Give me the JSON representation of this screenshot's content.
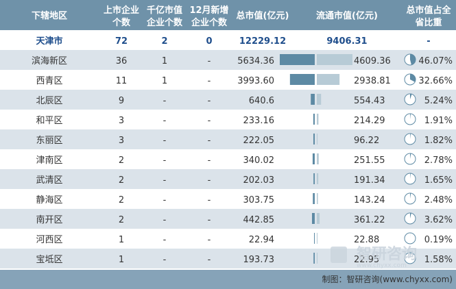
{
  "colors": {
    "header_bg": "#6f92a9",
    "band": "#dbe3ea",
    "footer_bg": "#86a3b8",
    "total_bar": "#5d8aa4",
    "circ_bar": "#b7cbd6",
    "pie_fill": "#5d8aa4",
    "pie_stroke": "#5d8aa4"
  },
  "table": {
    "headers": [
      [
        "下辖地区"
      ],
      [
        "上市企业",
        "个数"
      ],
      [
        "千亿市值",
        "企业个数"
      ],
      [
        "12月新增",
        "企业个数"
      ],
      [
        "总市值(亿元)"
      ],
      [
        "流通市值(亿元)"
      ],
      [
        "总市值占全",
        "省比重"
      ]
    ],
    "total_row": {
      "region": "天津市",
      "count": "72",
      "trillion": "2",
      "new": "0",
      "total": "12229.12",
      "circ": "9406.31",
      "share": "-"
    }
  },
  "chart_data": {
    "type": "table",
    "columns": [
      "下辖地区",
      "上市企业个数",
      "千亿市值企业个数",
      "12月新增企业个数",
      "总市值(亿元)",
      "流通市值(亿元)",
      "总市值占全省比重"
    ],
    "rows": [
      {
        "region": "滨海新区",
        "count": "36",
        "trillion": "1",
        "new": "-",
        "total": "5634.36",
        "circ": "4609.36",
        "share": "46.07%",
        "total_v": 5634.36,
        "circ_v": 4609.36,
        "share_v": 46.07
      },
      {
        "region": "西青区",
        "count": "11",
        "trillion": "1",
        "new": "-",
        "total": "3993.60",
        "circ": "2938.81",
        "share": "32.66%",
        "total_v": 3993.6,
        "circ_v": 2938.81,
        "share_v": 32.66
      },
      {
        "region": "北辰区",
        "count": "9",
        "trillion": "-",
        "new": "-",
        "total": "640.6",
        "circ": "554.43",
        "share": "5.24%",
        "total_v": 640.6,
        "circ_v": 554.43,
        "share_v": 5.24
      },
      {
        "region": "和平区",
        "count": "3",
        "trillion": "-",
        "new": "-",
        "total": "233.16",
        "circ": "214.29",
        "share": "1.91%",
        "total_v": 233.16,
        "circ_v": 214.29,
        "share_v": 1.91
      },
      {
        "region": "东丽区",
        "count": "3",
        "trillion": "-",
        "new": "-",
        "total": "222.05",
        "circ": "96.22",
        "share": "1.82%",
        "total_v": 222.05,
        "circ_v": 96.22,
        "share_v": 1.82
      },
      {
        "region": "津南区",
        "count": "2",
        "trillion": "-",
        "new": "-",
        "total": "340.02",
        "circ": "251.55",
        "share": "2.78%",
        "total_v": 340.02,
        "circ_v": 251.55,
        "share_v": 2.78
      },
      {
        "region": "武清区",
        "count": "2",
        "trillion": "-",
        "new": "-",
        "total": "202.03",
        "circ": "191.34",
        "share": "1.65%",
        "total_v": 202.03,
        "circ_v": 191.34,
        "share_v": 1.65
      },
      {
        "region": "静海区",
        "count": "2",
        "trillion": "-",
        "new": "-",
        "total": "303.75",
        "circ": "143.24",
        "share": "2.48%",
        "total_v": 303.75,
        "circ_v": 143.24,
        "share_v": 2.48
      },
      {
        "region": "南开区",
        "count": "2",
        "trillion": "-",
        "new": "-",
        "total": "442.85",
        "circ": "361.22",
        "share": "3.62%",
        "total_v": 442.85,
        "circ_v": 361.22,
        "share_v": 3.62
      },
      {
        "region": "河西区",
        "count": "1",
        "trillion": "-",
        "new": "-",
        "total": "22.94",
        "circ": "22.88",
        "share": "0.19%",
        "total_v": 22.94,
        "circ_v": 22.88,
        "share_v": 0.19
      },
      {
        "region": "宝坻区",
        "count": "1",
        "trillion": "-",
        "new": "-",
        "total": "193.73",
        "circ": "22.95",
        "share": "1.58%",
        "total_v": 193.73,
        "circ_v": 22.95,
        "share_v": 1.58
      }
    ]
  },
  "footer": {
    "credit": "制图：智研咨询(www.chyxx.com)"
  },
  "watermark": {
    "text": "智研咨询",
    "sub": "www.chyxx.com"
  }
}
